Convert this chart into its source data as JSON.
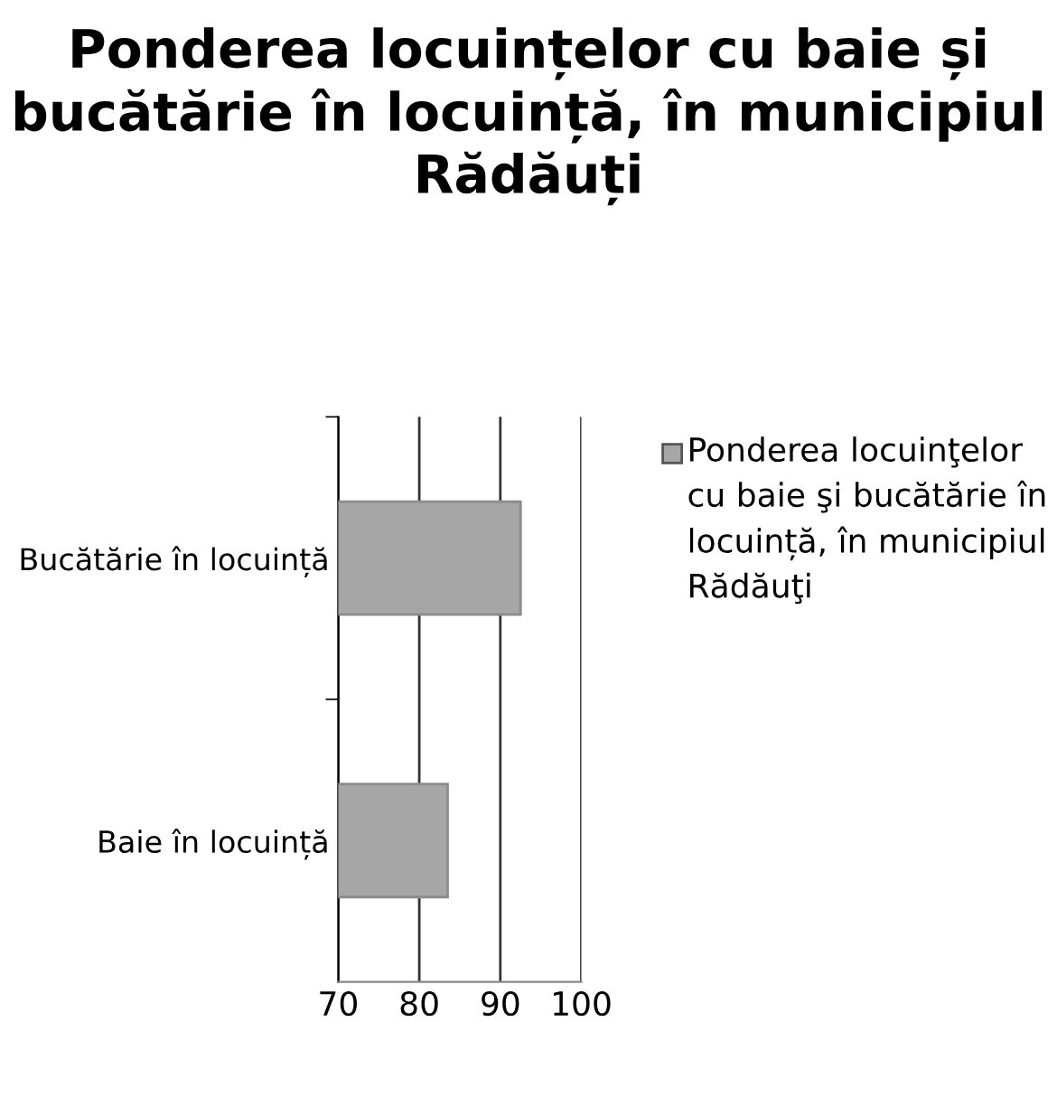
{
  "chart_data": {
    "type": "bar",
    "orientation": "horizontal",
    "title": "Ponderea locuințelor cu baie și bucătărie în locuință, în municipiul Rădăuți",
    "categories": [
      "Bucătărie în locuință",
      "Baie în locuință"
    ],
    "series": [
      {
        "name": "Ponderea locuinţelor cu baie şi bucătărie în locuință, în municipiul Rădăuţi",
        "color": "#a6a6a6",
        "values": [
          92.5,
          83.5
        ]
      }
    ],
    "xlim": [
      70,
      100
    ],
    "xticks": [
      70,
      80,
      90,
      100
    ],
    "grid": "x",
    "legend": "right"
  }
}
